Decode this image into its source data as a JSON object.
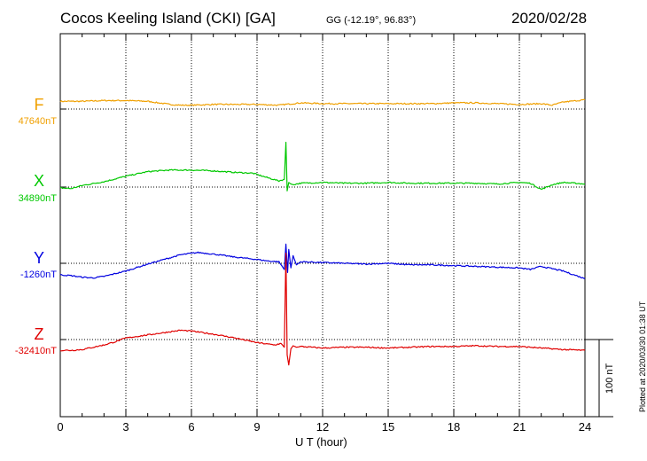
{
  "header": {
    "title": "Cocos Keeling Island (CKI)  [GA]",
    "coords": "GG (-12.19°,  96.83°)",
    "date": "2020/02/28"
  },
  "footer": {
    "plotted": "Plotted at 2020/03/30 01:38 UT"
  },
  "chart_data": {
    "type": "line",
    "xlabel": "U T (hour)",
    "xlim": [
      0,
      24
    ],
    "xticks": [
      "0",
      "3",
      "6",
      "9",
      "12",
      "15",
      "18",
      "21",
      "24"
    ],
    "scale_bar": "100 nT",
    "grid": true,
    "series": [
      {
        "name": "F",
        "baseline": "47640nT",
        "color": "#f0a000",
        "x": [
          0,
          1,
          2,
          3,
          4,
          5,
          5.5,
          6,
          7,
          8,
          9,
          10,
          10.3,
          11,
          12,
          13,
          14,
          15,
          16,
          17,
          18,
          19,
          20,
          21,
          22,
          22.5,
          23,
          24
        ],
        "values": [
          10,
          10,
          11,
          11,
          10,
          6,
          5,
          5,
          6,
          6,
          6,
          5,
          6,
          8,
          7,
          7,
          7,
          7,
          7,
          7,
          8,
          8,
          7,
          6,
          7,
          5,
          9,
          12
        ]
      },
      {
        "name": "X",
        "baseline": "34890nT",
        "color": "#00c800",
        "x": [
          0,
          0.5,
          1,
          2,
          3,
          4,
          5,
          6,
          7,
          8,
          8.8,
          9.5,
          10,
          10.25,
          10.32,
          10.38,
          10.45,
          10.6,
          11,
          12,
          13,
          14,
          15,
          16,
          17,
          18,
          19,
          20,
          21,
          21.5,
          22,
          22.5,
          23,
          24
        ],
        "values": [
          -1,
          -2,
          2,
          7,
          14,
          20,
          22,
          22,
          21,
          19,
          18,
          12,
          8,
          10,
          58,
          -5,
          6,
          3,
          5,
          6,
          5,
          5,
          6,
          5,
          5,
          5,
          5,
          4,
          6,
          5,
          -3,
          3,
          6,
          4
        ]
      },
      {
        "name": "Y",
        "baseline": "-1260nT",
        "color": "#0000e0",
        "x": [
          0,
          0.5,
          1,
          1.5,
          2,
          3,
          4,
          5,
          5.5,
          6,
          6.3,
          7,
          8,
          9,
          9.5,
          10,
          10.25,
          10.32,
          10.4,
          10.45,
          10.55,
          10.65,
          10.8,
          11,
          12,
          13,
          14,
          15,
          16,
          17,
          18,
          19,
          20,
          21,
          21.5,
          22,
          23,
          23.5,
          24
        ],
        "values": [
          -15,
          -16,
          -18,
          -19,
          -17,
          -10,
          -1,
          7,
          11,
          13,
          14,
          12,
          8,
          5,
          3,
          2,
          -8,
          25,
          -12,
          18,
          -6,
          10,
          -2,
          2,
          1,
          0,
          -1,
          0,
          -2,
          -2,
          -3,
          -4,
          -5,
          -6,
          -8,
          -4,
          -10,
          -15,
          -20
        ]
      },
      {
        "name": "Z",
        "baseline": "-32410nT",
        "color": "#e00000",
        "x": [
          0,
          0.5,
          1,
          2,
          2.5,
          3,
          4,
          5,
          5.5,
          6,
          7,
          8,
          9,
          9.8,
          10.1,
          10.25,
          10.32,
          10.38,
          10.45,
          10.55,
          10.65,
          10.8,
          11,
          12,
          13,
          14,
          15,
          16,
          17,
          18,
          19,
          20,
          21,
          22,
          23,
          24
        ],
        "values": [
          -14,
          -14,
          -13,
          -7,
          -3,
          2,
          6,
          10,
          12,
          11,
          7,
          2,
          -4,
          -7,
          -5,
          -10,
          112,
          -20,
          -33,
          -12,
          -8,
          -10,
          -9,
          -11,
          -10,
          -10,
          -11,
          -10,
          -9,
          -9,
          -8,
          -9,
          -9,
          -11,
          -13,
          -14
        ]
      }
    ]
  }
}
